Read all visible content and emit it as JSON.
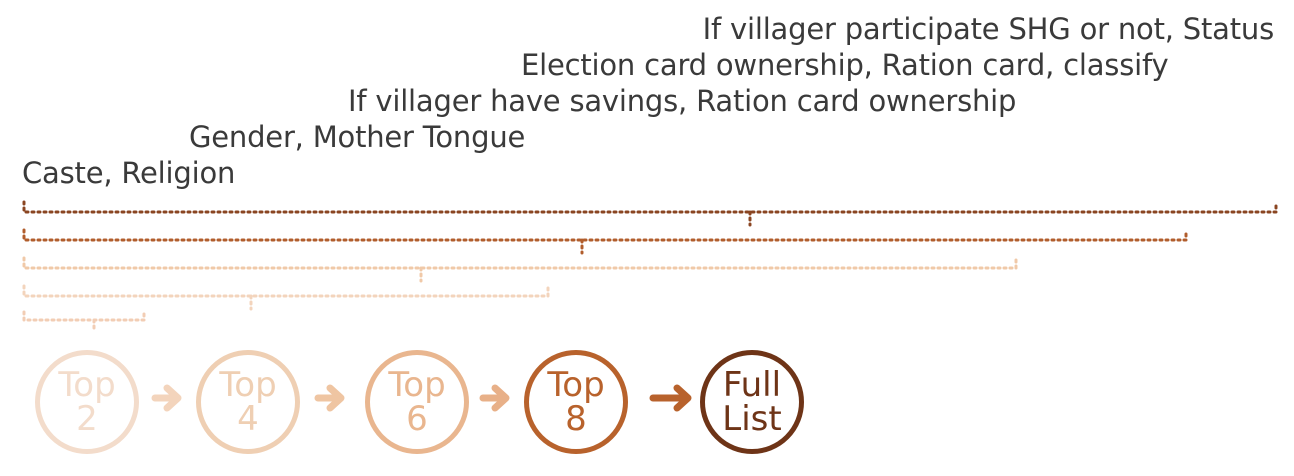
{
  "labels": [
    {
      "text": "If villager participate SHG or not, Status"
    },
    {
      "text": "Election card ownership, Ration card, classify"
    },
    {
      "text": "If villager have savings, Ration card ownership"
    },
    {
      "text": "Gender, Mother Tongue"
    },
    {
      "text": "Caste, Religion"
    }
  ],
  "steps": [
    {
      "line1": "Top",
      "line2": "2",
      "color": "#f3dccb"
    },
    {
      "line1": "Top",
      "line2": "4",
      "color": "#efcfb3"
    },
    {
      "line1": "Top",
      "line2": "6",
      "color": "#e9b68f"
    },
    {
      "line1": "Top",
      "line2": "8",
      "color": "#b8622c"
    },
    {
      "line1": "Full",
      "line2": "List",
      "color": "#6e3417"
    }
  ],
  "brace_colors": [
    "#8a4521",
    "#b15d2c",
    "#f0c9a8",
    "#f3d4bc",
    "#f2cdb4"
  ]
}
